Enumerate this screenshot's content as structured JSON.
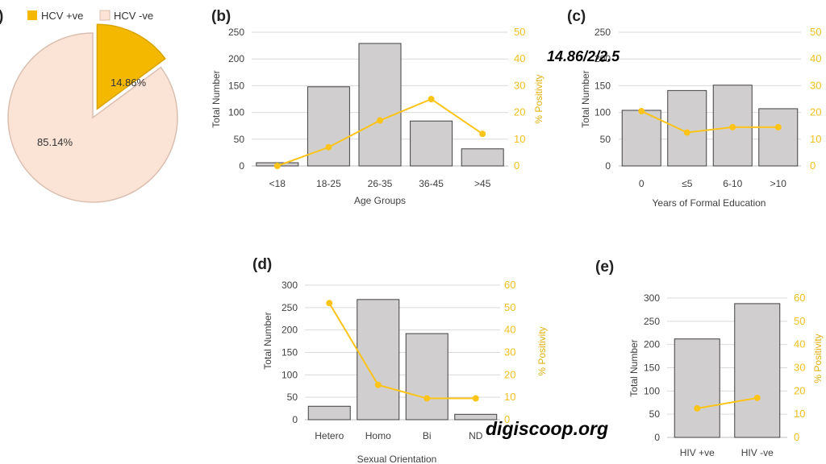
{
  "colors": {
    "bar": "#d0cecf",
    "bar_edge": "#404040",
    "line": "#fcc419",
    "hcv_pos": "#f5b800",
    "hcv_neg": "#fbe3d6",
    "grid": "#d9d9d9"
  },
  "watermarks": {
    "top": "14.86/2/2.5",
    "bottom": "digiscoop.org"
  },
  "chart_data": [
    {
      "id": "a",
      "panel_label": ")",
      "type": "pie",
      "labels": [
        "HCV +ve",
        "HCV -ve"
      ],
      "values": [
        14.86,
        85.14
      ],
      "data_labels": [
        "14.86%",
        "85.14%"
      ],
      "legend": "top"
    },
    {
      "id": "b",
      "panel_label": "(b)",
      "type": "bar",
      "categories": [
        "<18",
        "18-25",
        "26-35",
        "36-45",
        ">45"
      ],
      "values": [
        6,
        148,
        229,
        84,
        32
      ],
      "line_values": [
        0,
        7,
        17,
        25,
        12
      ],
      "xlabel": "Age Groups",
      "ylabel": "Total Number",
      "y2label": "% Positivity",
      "ylim": [
        0,
        250
      ],
      "yticks": [
        0,
        50,
        100,
        150,
        200,
        250
      ],
      "y2lim": [
        0,
        50
      ],
      "y2ticks": [
        0,
        10,
        20,
        30,
        40,
        50
      ],
      "grid": true
    },
    {
      "id": "c",
      "panel_label": "(c)",
      "type": "bar",
      "categories": [
        "0",
        "≤5",
        "6-10",
        ">10"
      ],
      "values": [
        104,
        141,
        151,
        107
      ],
      "line_values": [
        20.5,
        12.5,
        14.5,
        14.5
      ],
      "xlabel": "Years of Formal Education",
      "ylabel": "Total Number",
      "y2label": "% Positivity",
      "ylim": [
        0,
        250
      ],
      "yticks": [
        0,
        50,
        100,
        150,
        200,
        250
      ],
      "y2lim": [
        0,
        50
      ],
      "y2ticks": [
        0,
        10,
        20,
        30,
        40,
        50
      ],
      "grid": true
    },
    {
      "id": "d",
      "panel_label": "(d)",
      "type": "bar",
      "categories": [
        "Hetero",
        "Homo",
        "Bi",
        "ND"
      ],
      "values": [
        30,
        268,
        192,
        12
      ],
      "line_values": [
        52,
        15.5,
        9.5,
        9.5
      ],
      "xlabel": "Sexual Orientation",
      "ylabel": "Total Number",
      "y2label": "% Positivity",
      "ylim": [
        0,
        300
      ],
      "yticks": [
        0,
        50,
        100,
        150,
        200,
        250,
        300
      ],
      "y2lim": [
        0,
        60
      ],
      "y2ticks": [
        0,
        10,
        20,
        30,
        40,
        50,
        60
      ],
      "grid": true
    },
    {
      "id": "e",
      "panel_label": "(e)",
      "type": "bar",
      "categories": [
        "HIV +ve",
        "HIV -ve"
      ],
      "values": [
        212,
        288
      ],
      "line_values": [
        12.5,
        17
      ],
      "xlabel": "",
      "ylabel": "Total Number",
      "y2label": "% Positivity",
      "ylim": [
        0,
        300
      ],
      "yticks": [
        0,
        50,
        100,
        150,
        200,
        250,
        300
      ],
      "y2lim": [
        0,
        60
      ],
      "y2ticks": [
        0,
        10,
        20,
        30,
        40,
        50,
        60
      ],
      "grid": true
    }
  ]
}
